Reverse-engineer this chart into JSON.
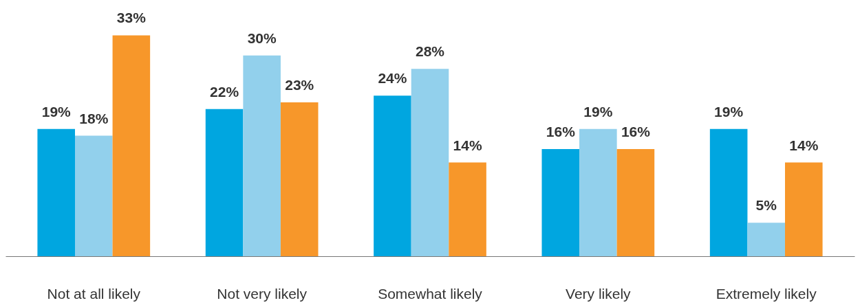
{
  "chart_data": {
    "type": "bar",
    "categories": [
      "Not at all likely",
      "Not very likely",
      "Somewhat likely",
      "Very likely",
      "Extremely likely"
    ],
    "series": [
      {
        "color": "#00a6e0",
        "values": [
          19,
          22,
          24,
          16,
          19
        ],
        "value_labels": [
          "19%",
          "22%",
          "24%",
          "16%",
          "19%"
        ]
      },
      {
        "color": "#92d0ec",
        "values": [
          18,
          30,
          28,
          19,
          5
        ],
        "value_labels": [
          "18%",
          "30%",
          "28%",
          "19%",
          "5%"
        ]
      },
      {
        "color": "#f7972a",
        "values": [
          33,
          23,
          14,
          16,
          14
        ],
        "value_labels": [
          "33%",
          "23%",
          "14%",
          "16%",
          "14%"
        ]
      }
    ]
  }
}
